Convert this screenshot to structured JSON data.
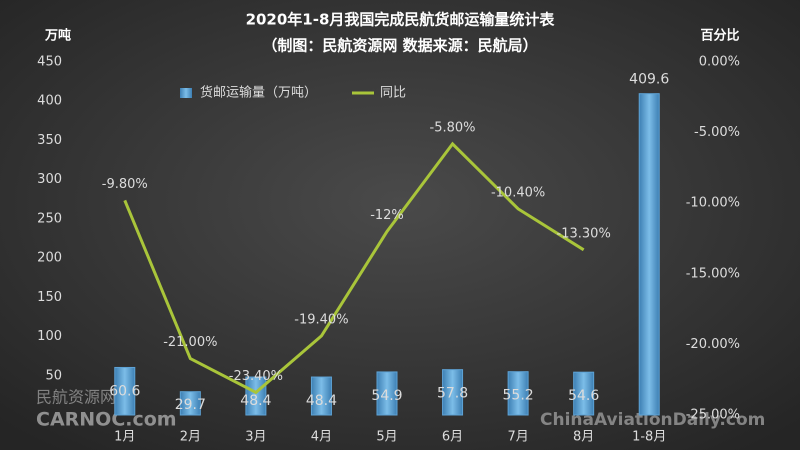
{
  "chart_data": {
    "type": "bar",
    "title": "2020年1-8月我国完成民航货邮运输量统计表",
    "subtitle": "（制图：民航资源网  数据来源：民航局）",
    "y_label": "万吨",
    "y2_label": "百分比",
    "categories": [
      "1月",
      "2月",
      "3月",
      "4月",
      "5月",
      "6月",
      "7月",
      "8月",
      "1-8月"
    ],
    "series": [
      {
        "name": "货邮运输量（万吨）",
        "type": "bar",
        "color": "#5ea3d6",
        "values": [
          60.6,
          29.7,
          48.4,
          48.4,
          54.9,
          57.8,
          55.2,
          54.6,
          409.6
        ]
      },
      {
        "name": "同比",
        "type": "line",
        "axis": "y2",
        "color": "#a9c53a",
        "values": [
          -9.8,
          -21.0,
          -23.4,
          -19.4,
          -12,
          -5.8,
          -10.4,
          -13.3,
          null
        ],
        "value_labels": [
          "-9.80%",
          "-21.00%",
          "-23.40%",
          "-19.40%",
          "-12%",
          "-5.80%",
          "-10.40%",
          "-13.30%",
          null
        ]
      }
    ],
    "ylim": [
      0,
      450
    ],
    "yticks": [
      50,
      100,
      150,
      200,
      250,
      300,
      350,
      400,
      450
    ],
    "y2lim": [
      -25,
      0
    ],
    "y2ticks": [
      {
        "value": 0,
        "label": "0.00%"
      },
      {
        "value": -5,
        "label": "-5.00%"
      },
      {
        "value": -10,
        "label": "-10.00%"
      },
      {
        "value": -15,
        "label": "-15.00%"
      },
      {
        "value": -20,
        "label": "-20.00%"
      },
      {
        "value": -25,
        "label": "-25.00%"
      }
    ],
    "legend": "top-left",
    "annotations": [
      "民航资源网",
      "CARNOC.com",
      "ChinaAviationDaily.com"
    ]
  }
}
